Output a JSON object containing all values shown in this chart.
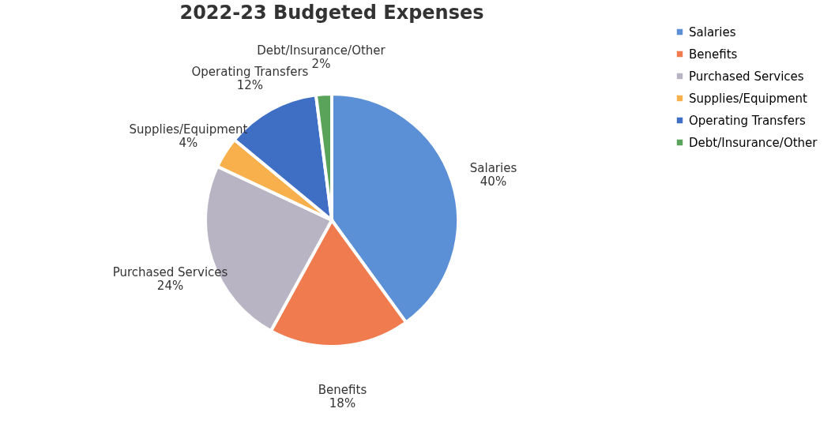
{
  "chart_data": {
    "type": "pie",
    "title": "2022-23 Budgeted Expenses",
    "categories": [
      "Salaries",
      "Benefits",
      "Purchased Services",
      "Supplies/Equipment",
      "Operating Transfers",
      "Debt/Insurance/Other"
    ],
    "values": [
      40,
      18,
      24,
      4,
      12,
      2
    ],
    "value_labels": [
      "40%",
      "18%",
      "24%",
      "4%",
      "12%",
      "2%"
    ],
    "colors": [
      "#5b8fd6",
      "#f07b4f",
      "#b8b4c4",
      "#f8b04c",
      "#3f6fc4",
      "#5aa35a"
    ],
    "legend": "right"
  }
}
